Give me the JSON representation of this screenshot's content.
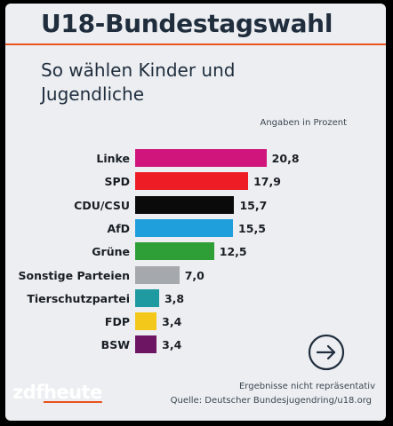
{
  "header": {
    "title": "U18-Bundestagswahl",
    "subtitle": "So wählen Kinder und Jugendliche"
  },
  "chart_data": {
    "type": "bar",
    "orientation": "horizontal",
    "unit_note": "Angaben in Prozent",
    "categories": [
      "Linke",
      "SPD",
      "CDU/CSU",
      "AfD",
      "Grüne",
      "Sonstige Parteien",
      "Tierschutzpartei",
      "FDP",
      "BSW"
    ],
    "values": [
      20.8,
      17.9,
      15.7,
      15.5,
      12.5,
      7.0,
      3.8,
      3.4,
      3.4
    ],
    "value_labels": [
      "20,8",
      "17,9",
      "15,7",
      "15,5",
      "12,5",
      "7,0",
      "3,8",
      "3,4",
      "3,4"
    ],
    "colors": [
      "#d0157c",
      "#ee1c25",
      "#0a0a0a",
      "#1f9fdc",
      "#2e9e36",
      "#a5a9ae",
      "#1f9aa0",
      "#f4c81a",
      "#6d1562"
    ],
    "xlim": [
      0,
      22
    ]
  },
  "footer": {
    "note": "Ergebnisse nicht repräsentativ",
    "source": "Quelle: Deutscher Bundesjugendring/u18.org",
    "logo_zdf": "zdf",
    "logo_heute": "heute"
  },
  "colors": {
    "accent": "#e8531e",
    "title": "#1f2d3d",
    "background": "#eceef1"
  }
}
